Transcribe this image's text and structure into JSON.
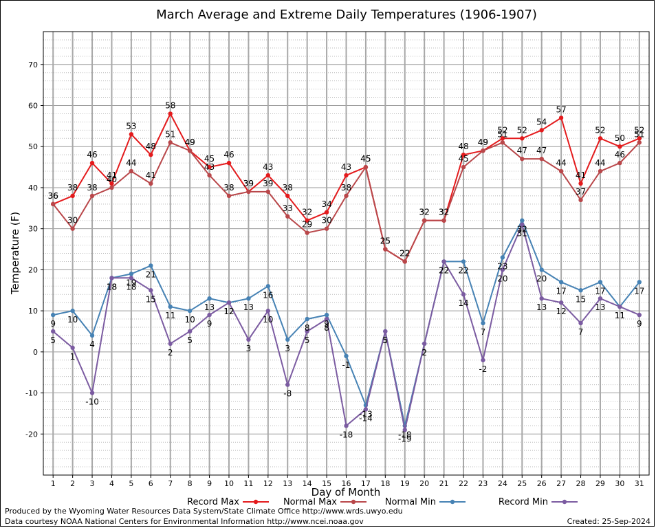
{
  "chart_data": {
    "type": "line",
    "title": "March Average and Extreme Daily Temperatures (1906-1907)",
    "xlabel": "Day of Month",
    "ylabel": "Temperature (F)",
    "ylim": [
      -30,
      78
    ],
    "yticks": [
      -20,
      -10,
      0,
      10,
      20,
      30,
      40,
      50,
      60,
      70
    ],
    "x": [
      1,
      2,
      3,
      4,
      5,
      6,
      7,
      8,
      9,
      10,
      11,
      12,
      13,
      14,
      15,
      16,
      17,
      18,
      19,
      20,
      21,
      22,
      23,
      24,
      25,
      26,
      27,
      28,
      29,
      30,
      31
    ],
    "grid": true,
    "legend_position": "bottom",
    "series": [
      {
        "name": "Record Max",
        "color": "#e41a1c",
        "label_pos": "above",
        "values": [
          36,
          38,
          46,
          41,
          53,
          48,
          58,
          49,
          45,
          46,
          39,
          43,
          38,
          32,
          34,
          43,
          45,
          25,
          22,
          32,
          32,
          48,
          49,
          52,
          52,
          54,
          57,
          41,
          52,
          50,
          52
        ]
      },
      {
        "name": "Normal Max",
        "color": "#b9474a",
        "label_pos": "above",
        "values": [
          36,
          30,
          38,
          40,
          44,
          41,
          51,
          49,
          43,
          38,
          39,
          39,
          33,
          29,
          30,
          38,
          45,
          25,
          22,
          32,
          32,
          45,
          49,
          51,
          47,
          47,
          44,
          37,
          44,
          46,
          51
        ]
      },
      {
        "name": "Normal Min",
        "color": "#4682b4",
        "label_pos": "below",
        "values": [
          9,
          10,
          4,
          18,
          19,
          21,
          11,
          10,
          13,
          12,
          13,
          16,
          3,
          8,
          9,
          -1,
          -13,
          5,
          -18,
          2,
          22,
          22,
          7,
          23,
          32,
          20,
          17,
          15,
          17,
          11,
          17
        ]
      },
      {
        "name": "Record Min",
        "color": "#7b5ba1",
        "label_pos": "below",
        "values": [
          5,
          1,
          -10,
          18,
          18,
          15,
          2,
          5,
          9,
          12,
          3,
          10,
          -8,
          5,
          8,
          -18,
          -14,
          5,
          -19,
          2,
          22,
          14,
          -2,
          20,
          31,
          13,
          12,
          7,
          13,
          11,
          9
        ]
      }
    ]
  },
  "footer": {
    "credit_line1": "Produced by the Wyoming Water Resources Data System/State Climate Office http://www.wrds.uwyo.edu",
    "credit_line2": "Data courtesy NOAA National Centers for Environmental Information http://www.ncei.noaa.gov",
    "created": "Created:  25-Sep-2024"
  }
}
